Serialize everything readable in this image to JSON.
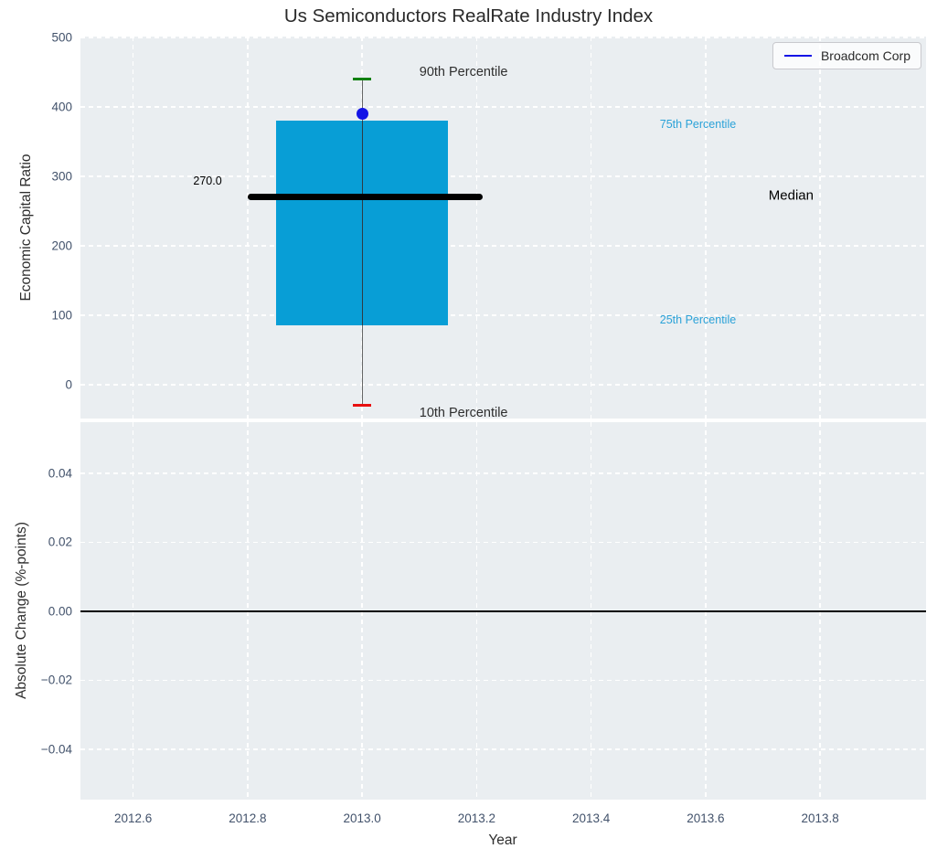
{
  "title": "Us Semiconductors RealRate Industry Index",
  "legend": {
    "label": "Broadcom Corp"
  },
  "colors": {
    "figure_bg": "#ffffff",
    "axes_bg": "#eaeef1",
    "grid": "#ffffff",
    "tick_label": "#42526b",
    "axis_label": "#2e2e2e",
    "title": "#2a2a2a",
    "box_fill": "#089ed6",
    "percentile_label": "#2ba2d8",
    "median_line": "#000000",
    "whisker": "#666666",
    "cap_90th": "#118011",
    "cap_10th": "#e81010",
    "marker": "#1414e6",
    "zero_line": "#000000",
    "legend_border": "#c9c9ce"
  },
  "chart_data": [
    {
      "type": "boxplot",
      "title": "Us Semiconductors RealRate Industry Index",
      "ylabel": "Economic Capital Ratio",
      "xlabel": "",
      "xlim": [
        2012.508,
        2013.985
      ],
      "ylim": [
        -49,
        501
      ],
      "grid": true,
      "legend_position": "upper right",
      "yticks": [
        {
          "v": 0,
          "label": "0"
        },
        {
          "v": 100,
          "label": "100"
        },
        {
          "v": 200,
          "label": "200"
        },
        {
          "v": 300,
          "label": "300"
        },
        {
          "v": 400,
          "label": "400"
        },
        {
          "v": 500,
          "label": "500"
        }
      ],
      "xticks": [
        {
          "v": 2012.6,
          "label": "2012.6"
        },
        {
          "v": 2012.8,
          "label": "2012.8"
        },
        {
          "v": 2013.0,
          "label": "2013.0"
        },
        {
          "v": 2013.2,
          "label": "2013.2"
        },
        {
          "v": 2013.4,
          "label": "2013.4"
        },
        {
          "v": 2013.6,
          "label": "2013.6"
        },
        {
          "v": 2013.8,
          "label": "2013.8"
        }
      ],
      "series": [
        {
          "name": "Broadcom Corp",
          "x": 2013.0,
          "p10": -30,
          "p25": 85,
          "median": 270,
          "p75": 380,
          "p90": 440,
          "company_value": 390,
          "box_halfwidth": 0.15,
          "cap_halfwidth": 0.016,
          "median_line_span": [
            2012.8,
            2013.21
          ]
        }
      ],
      "annotations": [
        {
          "name": "label-90th-percentile",
          "text": "90th Percentile",
          "x": 2013.1,
          "y": 450,
          "color_key": "axis_label",
          "size": 14.5,
          "anchor": "start"
        },
        {
          "name": "label-75th-percentile",
          "text": "75th Percentile",
          "x": 2013.52,
          "y": 375,
          "color_key": "percentile_label",
          "size": 12.5,
          "anchor": "start"
        },
        {
          "name": "label-median",
          "text": "Median",
          "x": 2013.71,
          "y": 272,
          "color_key": "median_line",
          "size": 15,
          "anchor": "start"
        },
        {
          "name": "label-25th-percentile",
          "text": "25th Percentile",
          "x": 2013.52,
          "y": 93,
          "color_key": "percentile_label",
          "size": 12.5,
          "anchor": "start"
        },
        {
          "name": "label-10th-percentile",
          "text": "10th Percentile",
          "x": 2013.1,
          "y": -41,
          "color_key": "axis_label",
          "size": 14.5,
          "anchor": "start"
        },
        {
          "name": "median-value-label",
          "text": "270.0",
          "x": 2012.73,
          "y": 293,
          "color_key": "median_line",
          "size": 12.5,
          "anchor": "middle"
        }
      ]
    },
    {
      "type": "line",
      "ylabel": "Absolute Change (%-points)",
      "xlabel": "Year",
      "xlim": [
        2012.508,
        2013.985
      ],
      "ylim": [
        -0.0546,
        0.0548
      ],
      "grid": true,
      "zero_line": 0.0,
      "yticks": [
        {
          "v": -0.04,
          "label": "−0.04"
        },
        {
          "v": -0.02,
          "label": "−0.02"
        },
        {
          "v": 0.0,
          "label": "0.00"
        },
        {
          "v": 0.02,
          "label": "0.02"
        },
        {
          "v": 0.04,
          "label": "0.04"
        }
      ],
      "xticks": [
        {
          "v": 2012.6,
          "label": "2012.6"
        },
        {
          "v": 2012.8,
          "label": "2012.8"
        },
        {
          "v": 2013.0,
          "label": "2013.0"
        },
        {
          "v": 2013.2,
          "label": "2013.2"
        },
        {
          "v": 2013.4,
          "label": "2013.4"
        },
        {
          "v": 2013.6,
          "label": "2013.6"
        },
        {
          "v": 2013.8,
          "label": "2013.8"
        }
      ],
      "series": []
    }
  ]
}
